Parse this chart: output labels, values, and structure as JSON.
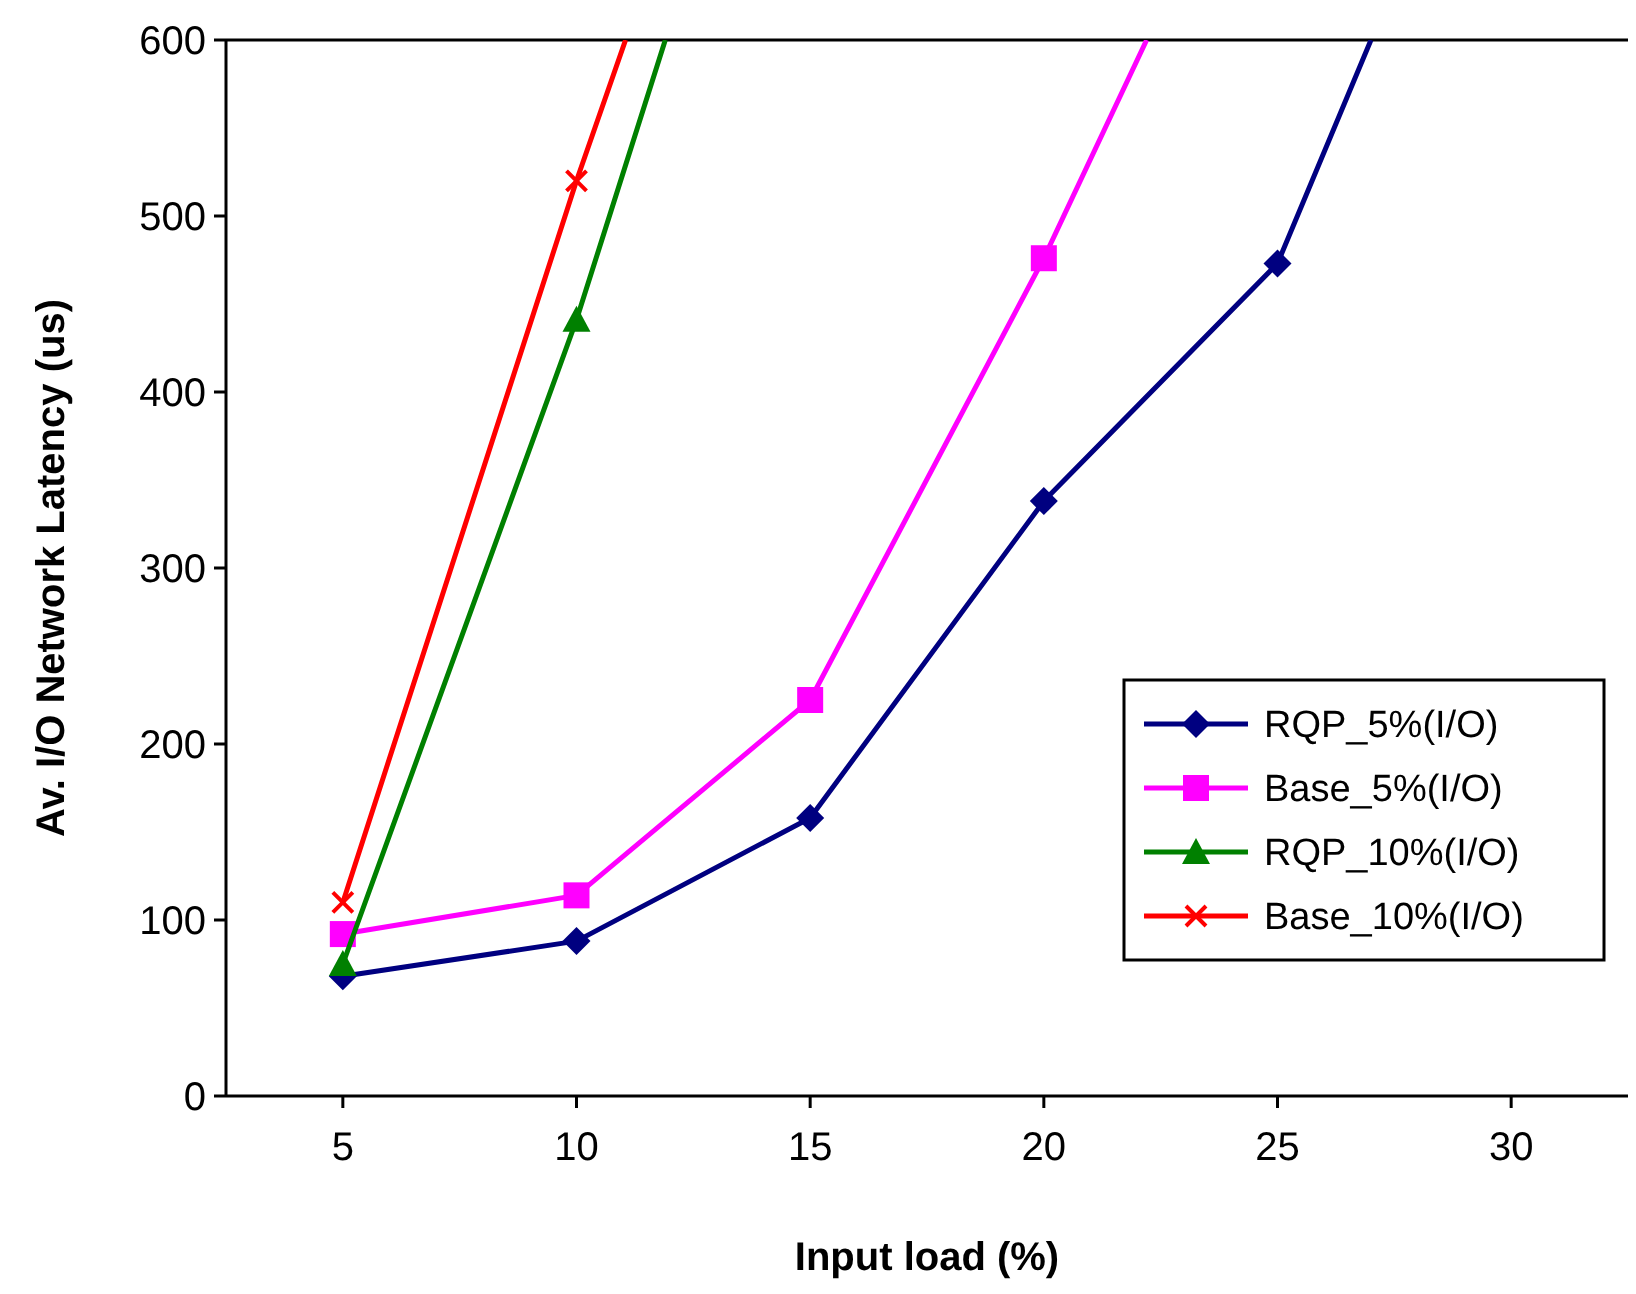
{
  "chart_data": {
    "type": "line",
    "xlabel": "Input load (%)",
    "ylabel": "Av. I/O Network Latency (us)",
    "xlim": [
      2.5,
      32.5
    ],
    "xticks": [
      5,
      10,
      15,
      20,
      25,
      30
    ],
    "ylim": [
      0,
      600
    ],
    "yticks": [
      0,
      100,
      200,
      300,
      400,
      500,
      600
    ],
    "legend": "bottom right",
    "grid": false,
    "series": [
      {
        "name": "RQP_5%(I/O)",
        "color": "#000080",
        "marker": "diamond",
        "x": [
          5,
          10,
          15,
          20,
          25,
          27.0
        ],
        "values": [
          68,
          88,
          158,
          338,
          473,
          600
        ]
      },
      {
        "name": "Base_5%(I/O)",
        "color": "#ff00ff",
        "marker": "square",
        "x": [
          5,
          10,
          15,
          20,
          22.2
        ],
        "values": [
          92,
          114,
          225,
          476,
          600
        ]
      },
      {
        "name": "RQP_10%(I/O)",
        "color": "#008000",
        "marker": "triangle",
        "x": [
          5,
          10,
          11.9
        ],
        "values": [
          75,
          441,
          600
        ]
      },
      {
        "name": "Base_10%(I/O)",
        "color": "#ff0000",
        "marker": "cross",
        "x": [
          5,
          10,
          11.05
        ],
        "values": [
          110,
          520,
          600
        ]
      }
    ]
  }
}
